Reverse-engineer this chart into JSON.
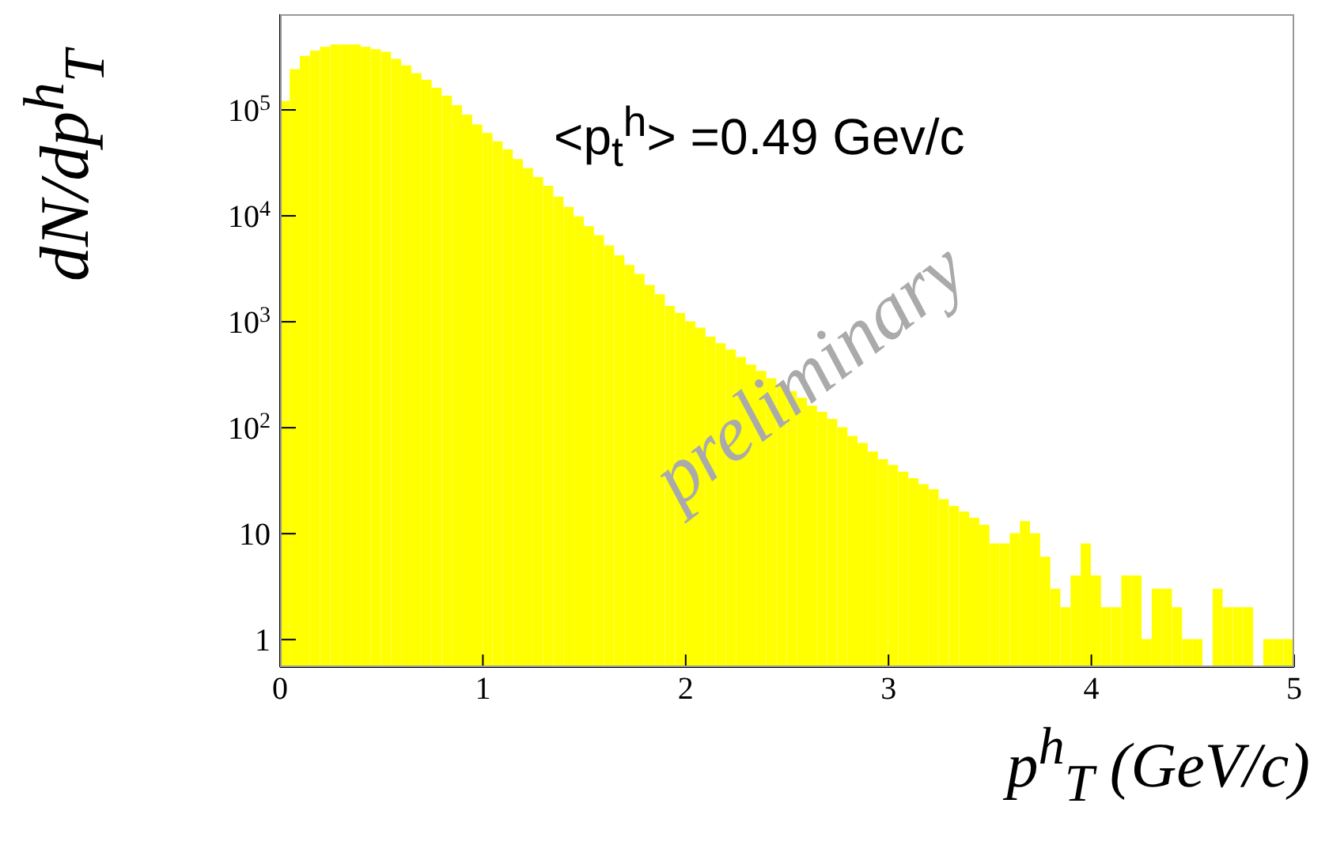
{
  "chart_data": {
    "type": "histogram",
    "xlabel": "p$^{h}$$_{T}$ (GeV/c)",
    "ylabel": "dN/dp$^{h}$$_{T}$",
    "annotations": [
      "<p$_{t}$$^{h}$> =0.49 Gev/c",
      "preliminary"
    ],
    "bins": [
      0,
      0.05,
      0.1,
      0.15,
      0.2,
      0.25,
      0.3,
      0.35,
      0.4,
      0.45,
      0.5,
      0.55,
      0.6,
      0.65,
      0.7,
      0.75,
      0.8,
      0.85,
      0.9,
      0.95,
      1,
      1.05,
      1.1,
      1.15,
      1.2,
      1.25,
      1.3,
      1.35,
      1.4,
      1.45,
      1.5,
      1.55,
      1.6,
      1.65,
      1.7,
      1.75,
      1.8,
      1.85,
      1.9,
      1.95,
      2,
      2.05,
      2.1,
      2.15,
      2.2,
      2.25,
      2.3,
      2.35,
      2.4,
      2.45,
      2.5,
      2.55,
      2.6,
      2.65,
      2.7,
      2.75,
      2.8,
      2.85,
      2.9,
      2.95,
      3,
      3.05,
      3.1,
      3.15,
      3.2,
      3.25,
      3.3,
      3.35,
      3.4,
      3.45,
      3.5,
      3.55,
      3.6,
      3.65,
      3.7,
      3.75,
      3.8,
      3.85,
      3.9,
      3.95,
      4,
      4.05,
      4.1,
      4.15,
      4.2,
      4.25,
      4.3,
      4.35,
      4.4,
      4.45,
      4.5,
      4.55,
      4.6,
      4.65,
      4.7,
      4.75,
      4.8,
      4.85,
      4.9,
      4.95,
      5
    ],
    "values": [
      120000,
      240000,
      320000,
      360000,
      390000,
      410000,
      410000,
      410000,
      390000,
      370000,
      350000,
      300000,
      260000,
      220000,
      190000,
      160000,
      135000,
      110000,
      89000,
      72000,
      60000,
      50000,
      42000,
      34000,
      28000,
      23000,
      19000,
      15000,
      12000,
      9800,
      7900,
      6500,
      5200,
      4200,
      3400,
      2800,
      2200,
      1800,
      1400,
      1200,
      1000,
      870,
      720,
      620,
      540,
      460,
      390,
      340,
      290,
      250,
      220,
      190,
      160,
      140,
      120,
      100,
      83,
      71,
      59,
      50,
      44,
      38,
      33,
      29,
      26,
      21,
      18,
      16,
      14,
      12,
      8,
      8,
      10,
      13,
      10,
      6,
      3,
      2,
      4,
      8,
      4,
      2,
      2,
      4,
      4,
      1,
      3,
      3,
      2,
      1,
      1,
      null,
      3,
      2,
      2,
      2,
      null,
      1,
      1,
      1
    ],
    "color": "#ffff00",
    "log": "y",
    "grid": false,
    "xlim": [
      0,
      5
    ],
    "xticks": [
      0,
      1,
      2,
      3,
      4,
      5
    ],
    "ylim": [
      0.55,
      800000
    ],
    "yticks": [
      1,
      10,
      {
        "value": 100,
        "label": "10$^{2}$"
      },
      {
        "value": 1000,
        "label": "10$^{3}$"
      },
      {
        "value": 10000,
        "label": "10$^{4}$"
      },
      {
        "value": 100000,
        "label": "10$^{5}$"
      }
    ]
  }
}
